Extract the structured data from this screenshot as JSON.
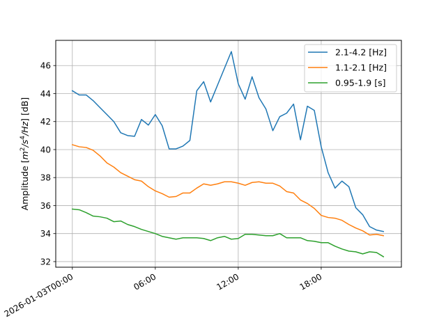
{
  "chart_data": {
    "type": "line",
    "ylabel_prefix": "Amplitude [",
    "ylabel_math_1": "m",
    "ylabel_sup_1": "2",
    "ylabel_math_2": "/s",
    "ylabel_sup_2": "4",
    "ylabel_math_3": "/Hz",
    "ylabel_suffix": "] [dB]",
    "xlabel": "",
    "x_range_hours": [
      -1.2,
      23.8
    ],
    "ylim": [
      31.6,
      47.8
    ],
    "yticks": [
      32,
      34,
      36,
      38,
      40,
      42,
      44,
      46
    ],
    "xtick_hours": [
      0,
      6,
      12,
      18
    ],
    "xtick_labels": [
      "2026-01-03T00:00",
      "06:00",
      "12:00",
      "18:00"
    ],
    "grid": true,
    "legend_position": "upper right",
    "x": [
      "00:00",
      "00:30",
      "01:00",
      "01:30",
      "02:00",
      "02:30",
      "03:00",
      "03:30",
      "04:00",
      "04:30",
      "05:00",
      "05:30",
      "06:00",
      "06:30",
      "07:00",
      "07:30",
      "08:00",
      "08:30",
      "09:00",
      "09:30",
      "10:00",
      "10:30",
      "11:00",
      "11:30",
      "12:00",
      "12:30",
      "13:00",
      "13:30",
      "14:00",
      "14:30",
      "15:00",
      "15:30",
      "16:00",
      "16:30",
      "17:00",
      "17:30",
      "18:00",
      "18:30",
      "19:00",
      "19:30",
      "20:00",
      "20:30",
      "21:00",
      "21:30",
      "22:00",
      "22:30"
    ],
    "series": [
      {
        "name": "2.1-4.2 [Hz]",
        "color": "#1f77b4",
        "values": [
          44.2,
          43.9,
          43.9,
          43.5,
          43.0,
          42.5,
          42.0,
          41.2,
          41.0,
          40.95,
          42.15,
          41.75,
          42.5,
          41.7,
          40.05,
          40.05,
          40.25,
          40.65,
          44.2,
          44.85,
          43.4,
          44.6,
          45.8,
          47.0,
          44.7,
          43.6,
          45.2,
          43.7,
          42.9,
          41.35,
          42.35,
          42.6,
          43.25,
          40.7,
          43.1,
          42.8,
          40.2,
          38.35,
          37.25,
          37.75,
          37.35,
          35.85,
          35.35,
          34.5,
          34.25,
          34.15
        ]
      },
      {
        "name": "1.1-2.1 [Hz]",
        "color": "#ff7f0e",
        "values": [
          40.35,
          40.2,
          40.15,
          39.95,
          39.55,
          39.05,
          38.75,
          38.35,
          38.1,
          37.85,
          37.75,
          37.35,
          37.05,
          36.85,
          36.6,
          36.65,
          36.9,
          36.9,
          37.25,
          37.55,
          37.45,
          37.55,
          37.7,
          37.7,
          37.6,
          37.45,
          37.65,
          37.7,
          37.6,
          37.6,
          37.4,
          37.0,
          36.9,
          36.4,
          36.15,
          35.8,
          35.3,
          35.15,
          35.1,
          34.95,
          34.65,
          34.4,
          34.2,
          33.9,
          33.95,
          33.85
        ]
      },
      {
        "name": "0.95-1.9 [s]",
        "color": "#2ca02c",
        "values": [
          35.75,
          35.7,
          35.5,
          35.25,
          35.2,
          35.1,
          34.85,
          34.9,
          34.65,
          34.5,
          34.3,
          34.15,
          34.0,
          33.8,
          33.7,
          33.6,
          33.7,
          33.7,
          33.7,
          33.65,
          33.5,
          33.7,
          33.8,
          33.6,
          33.65,
          33.95,
          33.95,
          33.9,
          33.85,
          33.85,
          34.0,
          33.7,
          33.7,
          33.7,
          33.5,
          33.45,
          33.35,
          33.35,
          33.1,
          32.9,
          32.75,
          32.7,
          32.55,
          32.7,
          32.65,
          32.35
        ]
      }
    ]
  }
}
